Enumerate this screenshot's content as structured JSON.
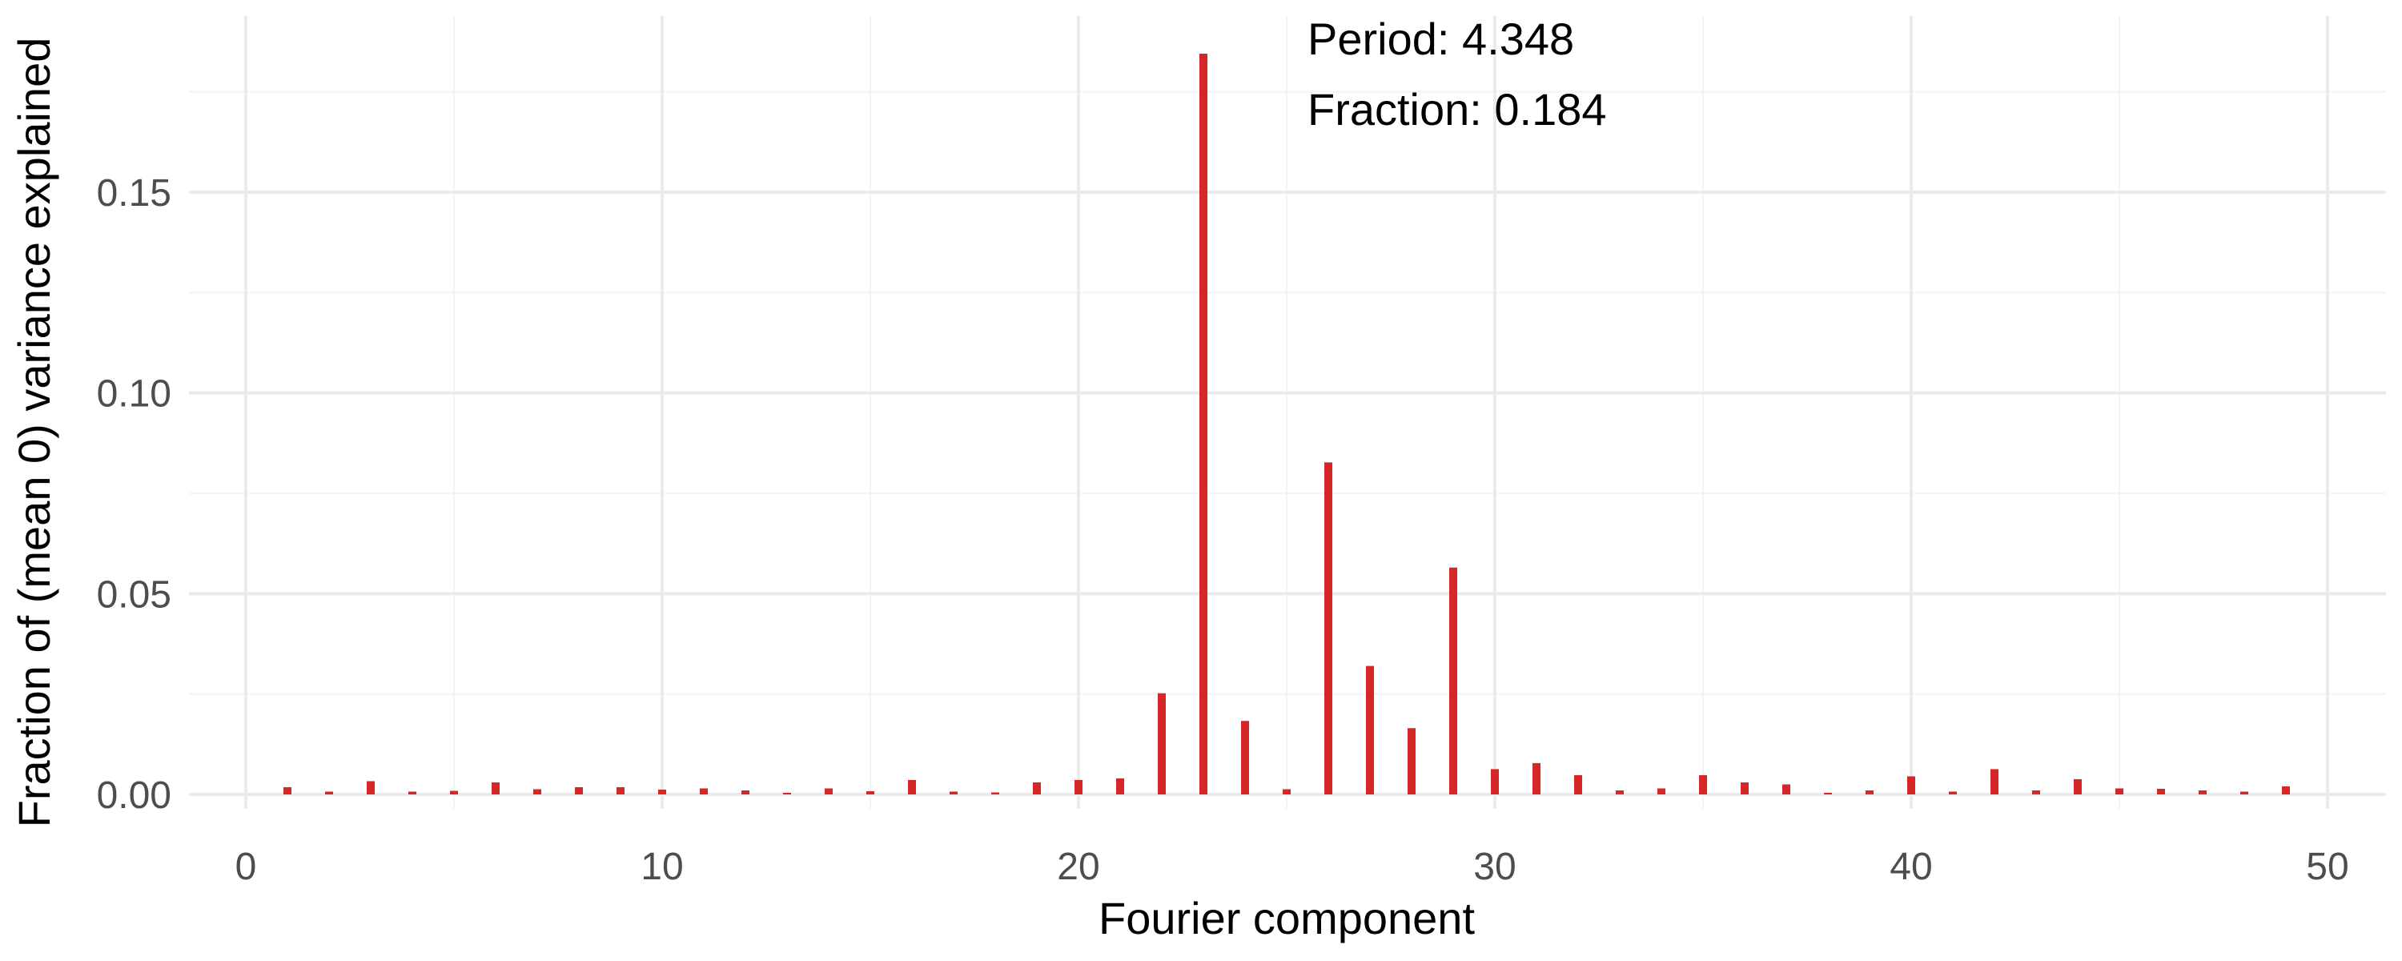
{
  "chart_data": {
    "type": "bar",
    "title": "",
    "xlabel": "Fourier component",
    "ylabel": "Fraction of (mean 0) variance explained",
    "xlim": [
      0,
      50
    ],
    "ylim": [
      0,
      0.184
    ],
    "xticks": [
      0,
      10,
      20,
      30,
      40,
      50
    ],
    "xtick_labels": [
      "0",
      "10",
      "20",
      "30",
      "40",
      "50"
    ],
    "yticks": [
      0,
      0.05,
      0.1,
      0.15
    ],
    "ytick_labels": [
      "0.00",
      "0.05",
      "0.10",
      "0.15"
    ],
    "grid": true,
    "bar_color": "#d62728",
    "x": [
      1,
      2,
      3,
      4,
      5,
      6,
      7,
      8,
      9,
      10,
      11,
      12,
      13,
      14,
      15,
      16,
      17,
      18,
      19,
      20,
      21,
      22,
      23,
      24,
      25,
      26,
      27,
      28,
      29,
      30,
      31,
      32,
      33,
      34,
      35,
      36,
      37,
      38,
      39,
      40,
      41,
      42,
      43,
      44,
      45,
      46,
      47,
      48,
      49
    ],
    "values": [
      0.0018,
      0.0007,
      0.0033,
      0.0007,
      0.0009,
      0.003,
      0.0013,
      0.0018,
      0.0018,
      0.0012,
      0.0015,
      0.001,
      0.0004,
      0.0015,
      0.0008,
      0.0036,
      0.0007,
      0.0005,
      0.003,
      0.0036,
      0.004,
      0.0252,
      0.1845,
      0.0183,
      0.0013,
      0.0827,
      0.032,
      0.0165,
      0.0565,
      0.0063,
      0.0078,
      0.0048,
      0.001,
      0.0015,
      0.0048,
      0.003,
      0.0025,
      0.0004,
      0.001,
      0.0045,
      0.0007,
      0.0063,
      0.001,
      0.0038,
      0.0015,
      0.0014,
      0.001,
      0.0007,
      0.002
    ],
    "annotations": [
      {
        "text": "Period: 4.348"
      },
      {
        "text": "Fraction: 0.184"
      }
    ]
  }
}
